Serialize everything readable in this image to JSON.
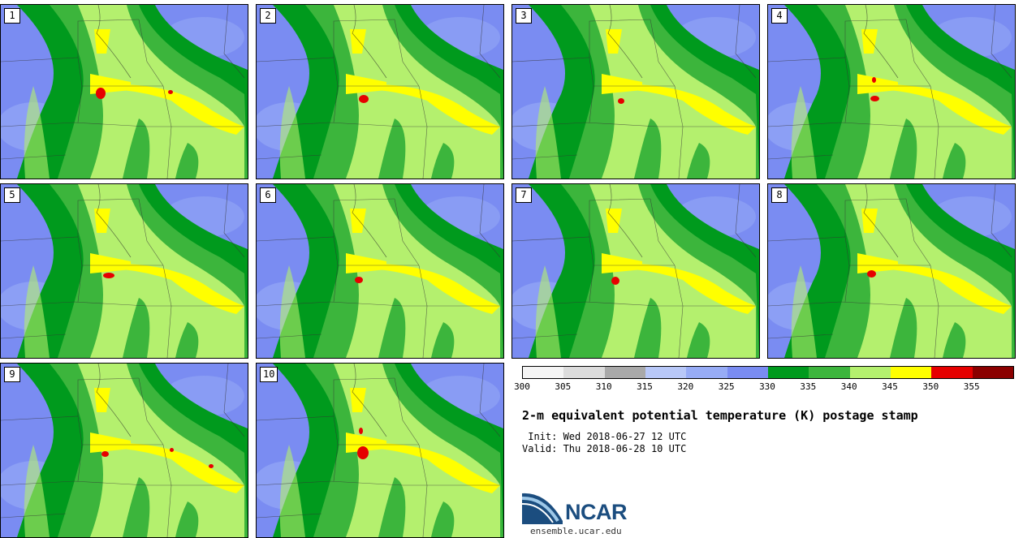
{
  "panels": [
    {
      "label": "1"
    },
    {
      "label": "2"
    },
    {
      "label": "3"
    },
    {
      "label": "4"
    },
    {
      "label": "5"
    },
    {
      "label": "6"
    },
    {
      "label": "7"
    },
    {
      "label": "8"
    },
    {
      "label": "9"
    },
    {
      "label": "10"
    }
  ],
  "legend": {
    "ticks": [
      "300",
      "305",
      "310",
      "315",
      "320",
      "325",
      "330",
      "335",
      "340",
      "345",
      "350",
      "355"
    ],
    "colors": [
      "#f4f4f4",
      "#dcdcdc",
      "#a9a9a9",
      "#b8c8f8",
      "#97acf6",
      "#7a8cf2",
      "#009a1d",
      "#3cb53c",
      "#b4f06e",
      "#ffff00",
      "#e60000",
      "#8b0000"
    ]
  },
  "title": "2-m equivalent potential temperature (K) postage stamp",
  "init": " Init: Wed 2018-06-27 12 UTC",
  "valid": "Valid: Thu 2018-06-28 10 UTC",
  "logo": {
    "name": "NCAR",
    "url": "ensemble.ucar.edu"
  }
}
